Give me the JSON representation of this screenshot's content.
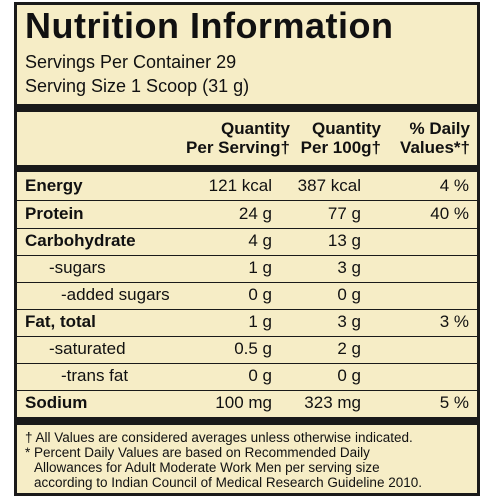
{
  "title": "Nutrition Information",
  "servings_per_container": "Servings Per Container 29",
  "serving_size": "Serving Size 1 Scoop (31 g)",
  "headers": {
    "per_serving": [
      "Quantity",
      "Per Serving†"
    ],
    "per_100g": [
      "Quantity",
      "Per 100g†"
    ],
    "daily_values": [
      "% Daily",
      "Values*†"
    ]
  },
  "rows": [
    {
      "label": "Energy",
      "per_serving": "121 kcal",
      "per_100g": "387 kcal",
      "dv": "4 %"
    },
    {
      "label": "Protein",
      "per_serving": "24 g",
      "per_100g": "77 g",
      "dv": "40 %"
    },
    {
      "label": "Carbohydrate",
      "per_serving": "4 g",
      "per_100g": "13 g",
      "dv": ""
    },
    {
      "label": "-sugars",
      "per_serving": "1 g",
      "per_100g": "3 g",
      "dv": ""
    },
    {
      "label": "-added sugars",
      "per_serving": "0 g",
      "per_100g": "0 g",
      "dv": ""
    },
    {
      "label": "Fat, total",
      "per_serving": "1 g",
      "per_100g": "3 g",
      "dv": "3 %"
    },
    {
      "label": "-saturated",
      "per_serving": "0.5 g",
      "per_100g": "2 g",
      "dv": ""
    },
    {
      "label": "-trans fat",
      "per_serving": "0 g",
      "per_100g": "0 g",
      "dv": ""
    },
    {
      "label": "Sodium",
      "per_serving": "100 mg",
      "per_100g": "323 mg",
      "dv": "5 %"
    }
  ],
  "footnotes": [
    "† All Values are considered averages unless otherwise indicated.",
    "* Percent Daily Values are based on Recommended Daily",
    "Allowances for Adult Moderate Work Men per serving size",
    "according to Indian Council of Medical Research Guideline 2010."
  ],
  "colors": {
    "panel_background": "#f6edc6",
    "text": "#111111",
    "rules": "#1a1a1a"
  }
}
